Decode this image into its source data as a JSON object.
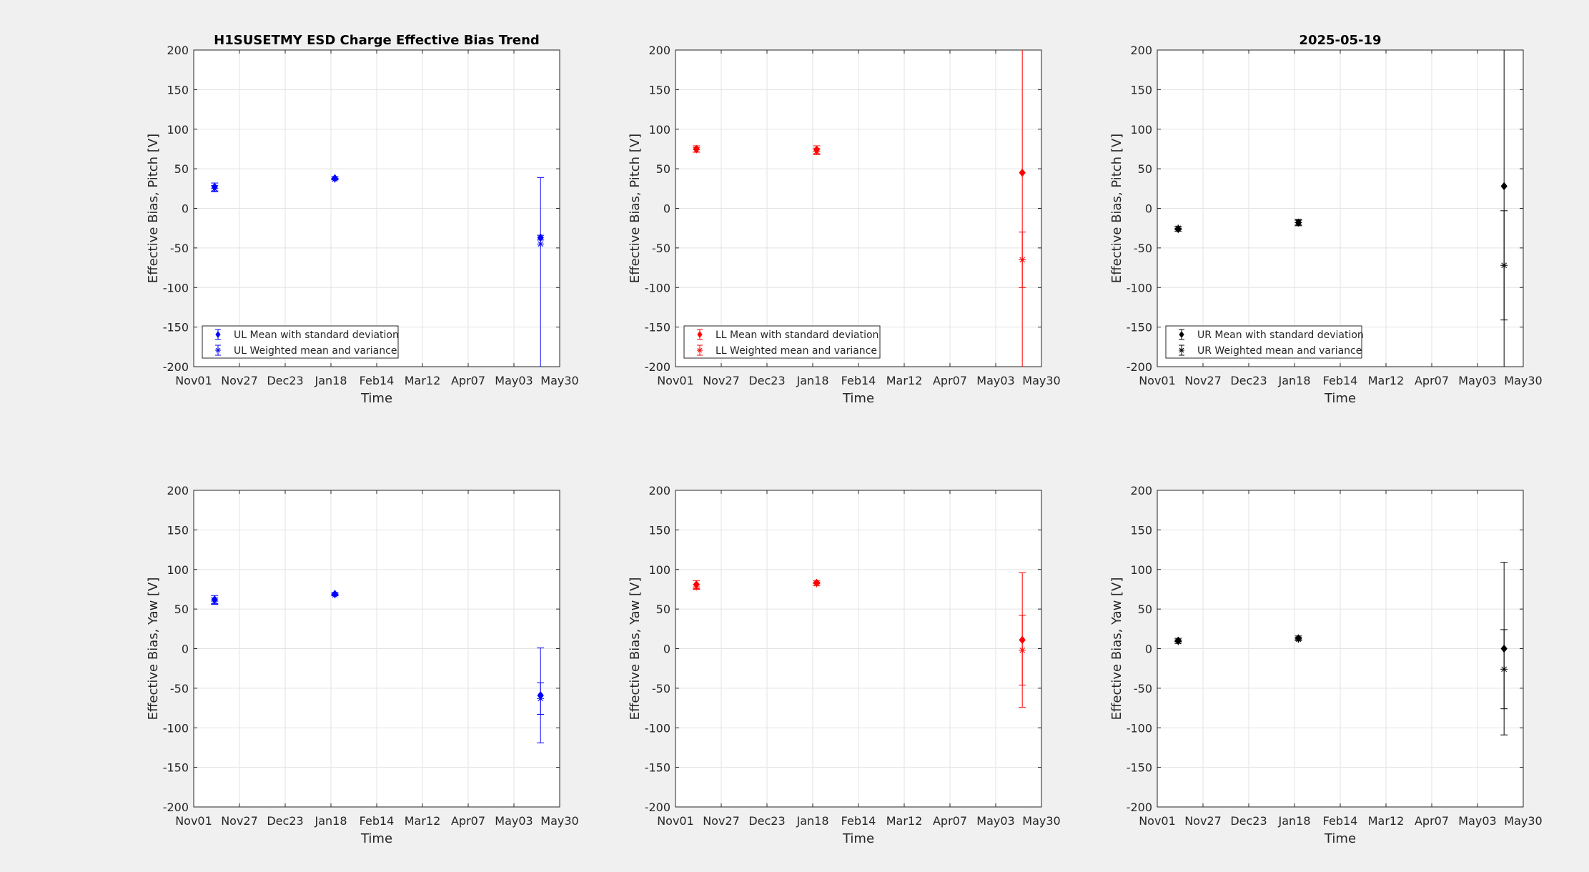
{
  "figure": {
    "background": "#f0f0f0"
  },
  "x_ticks": [
    "Nov01",
    "Nov27",
    "Dec23",
    "Jan18",
    "Feb14",
    "Mar12",
    "Apr07",
    "May03",
    "May30"
  ],
  "y_ticks": [
    "200",
    "150",
    "100",
    "50",
    "0",
    "-50",
    "-100",
    "-150",
    "-200"
  ],
  "chart_data": [
    {
      "type": "scatter",
      "panel": "UL pitch",
      "title": "H1SUSETMY ESD Charge Effective Bias Trend",
      "xlabel": "Time",
      "ylabel": "Effective Bias, Pitch [V]",
      "ylim": [
        -200,
        200
      ],
      "xlim": [
        "Nov01",
        "May30"
      ],
      "grid": true,
      "legend_position": "bottom-left",
      "color": "#0000ff",
      "series": [
        {
          "name": "UL Mean with standard deviation",
          "marker": "diamond",
          "points": [
            {
              "x": "2024-11-13",
              "y": 27,
              "err": 5
            },
            {
              "x": "2025-01-21",
              "y": 38,
              "err": 2
            },
            {
              "x": "2025-05-19",
              "y": -37,
              "err": 3
            }
          ]
        },
        {
          "name": "UL Weighted mean and variance",
          "marker": "star",
          "points": [
            {
              "x": "2024-11-13",
              "y": 25,
              "err": 4
            },
            {
              "x": "2025-01-21",
              "y": 37,
              "err": 1
            },
            {
              "x": "2025-05-19",
              "y": -45,
              "err": 84,
              "lower_err": 200
            }
          ]
        }
      ]
    },
    {
      "type": "scatter",
      "panel": "LL pitch",
      "title": "",
      "xlabel": "Time",
      "ylabel": "Effective Bias, Pitch [V]",
      "ylim": [
        -200,
        200
      ],
      "xlim": [
        "Nov01",
        "May30"
      ],
      "grid": true,
      "legend_position": "bottom-left",
      "color": "#ff0000",
      "series": [
        {
          "name": "LL Mean with standard deviation",
          "marker": "diamond",
          "points": [
            {
              "x": "2024-11-13",
              "y": 75,
              "err": 4
            },
            {
              "x": "2025-01-21",
              "y": 74,
              "err": 5
            },
            {
              "x": "2025-05-19",
              "y": 45,
              "err": 260
            }
          ]
        },
        {
          "name": "LL Weighted mean and variance",
          "marker": "star",
          "points": [
            {
              "x": "2024-11-13",
              "y": 74,
              "err": 3
            },
            {
              "x": "2025-01-21",
              "y": 72,
              "err": 4
            },
            {
              "x": "2025-05-19",
              "y": -65,
              "err": 35
            }
          ]
        }
      ]
    },
    {
      "type": "scatter",
      "panel": "UR pitch",
      "title": "2025-05-19",
      "xlabel": "Time",
      "ylabel": "Effective Bias, Pitch [V]",
      "ylim": [
        -200,
        200
      ],
      "xlim": [
        "Nov01",
        "May30"
      ],
      "grid": true,
      "legend_position": "bottom-left",
      "color": "#000000",
      "series": [
        {
          "name": "UR Mean with standard deviation",
          "marker": "diamond",
          "points": [
            {
              "x": "2024-11-13",
              "y": -26,
              "err": 3
            },
            {
              "x": "2025-01-21",
              "y": -18,
              "err": 4
            },
            {
              "x": "2025-05-19",
              "y": 28,
              "err": 260
            }
          ]
        },
        {
          "name": "UR Weighted mean and variance",
          "marker": "star",
          "points": [
            {
              "x": "2024-11-13",
              "y": -25,
              "err": 2
            },
            {
              "x": "2025-01-21",
              "y": -18,
              "err": 3
            },
            {
              "x": "2025-05-19",
              "y": -72,
              "err": 69
            }
          ]
        }
      ]
    },
    {
      "type": "scatter",
      "panel": "UL yaw",
      "title": "",
      "xlabel": "Time",
      "ylabel": "Effective Bias, Yaw [V]",
      "ylim": [
        -200,
        200
      ],
      "xlim": [
        "Nov01",
        "May30"
      ],
      "grid": true,
      "color": "#0000ff",
      "series": [
        {
          "marker": "diamond",
          "points": [
            {
              "x": "2024-11-13",
              "y": 62,
              "err": 5
            },
            {
              "x": "2025-01-21",
              "y": 69,
              "err": 2
            },
            {
              "x": "2025-05-19",
              "y": -59,
              "err": 60
            }
          ]
        },
        {
          "marker": "star",
          "points": [
            {
              "x": "2024-11-13",
              "y": 60,
              "err": 4
            },
            {
              "x": "2025-01-21",
              "y": 68,
              "err": 1
            },
            {
              "x": "2025-05-19",
              "y": -63,
              "err": 20
            }
          ]
        }
      ]
    },
    {
      "type": "scatter",
      "panel": "LL yaw",
      "title": "",
      "xlabel": "Time",
      "ylabel": "Effective Bias, Yaw [V]",
      "ylim": [
        -200,
        200
      ],
      "xlim": [
        "Nov01",
        "May30"
      ],
      "grid": true,
      "color": "#ff0000",
      "series": [
        {
          "marker": "diamond",
          "points": [
            {
              "x": "2024-11-13",
              "y": 81,
              "err": 5
            },
            {
              "x": "2025-01-21",
              "y": 83,
              "err": 3
            },
            {
              "x": "2025-05-19",
              "y": 11,
              "err": 85
            }
          ]
        },
        {
          "marker": "star",
          "points": [
            {
              "x": "2024-11-13",
              "y": 78,
              "err": 3
            },
            {
              "x": "2025-01-21",
              "y": 82,
              "err": 2
            },
            {
              "x": "2025-05-19",
              "y": -2,
              "err": 44
            }
          ]
        }
      ]
    },
    {
      "type": "scatter",
      "panel": "UR yaw",
      "title": "",
      "xlabel": "Time",
      "ylabel": "Effective Bias, Yaw [V]",
      "ylim": [
        -200,
        200
      ],
      "xlim": [
        "Nov01",
        "May30"
      ],
      "grid": true,
      "color": "#000000",
      "series": [
        {
          "marker": "diamond",
          "points": [
            {
              "x": "2024-11-13",
              "y": 10,
              "err": 3
            },
            {
              "x": "2025-01-21",
              "y": 13,
              "err": 3
            },
            {
              "x": "2025-05-19",
              "y": 0,
              "err": 109
            }
          ]
        },
        {
          "marker": "star",
          "points": [
            {
              "x": "2024-11-13",
              "y": 9,
              "err": 2
            },
            {
              "x": "2025-01-21",
              "y": 12,
              "err": 2
            },
            {
              "x": "2025-05-19",
              "y": -26,
              "err": 50
            }
          ]
        }
      ]
    }
  ]
}
